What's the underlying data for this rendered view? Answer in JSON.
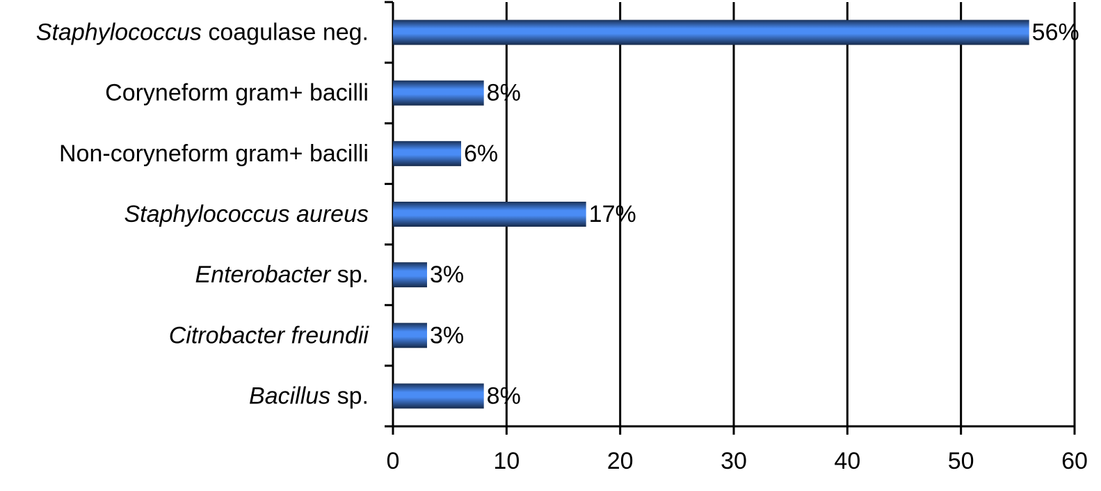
{
  "chart_data": {
    "type": "bar",
    "orientation": "horizontal",
    "categories": [
      [
        {
          "text": "Staphylococcus",
          "italic": true
        },
        {
          "text": " coagulase neg.",
          "italic": false
        }
      ],
      [
        {
          "text": "Coryneform gram+ bacilli",
          "italic": false
        }
      ],
      [
        {
          "text": "Non-coryneform gram+ bacilli",
          "italic": false
        }
      ],
      [
        {
          "text": "Staphylococcus aureus",
          "italic": true
        }
      ],
      [
        {
          "text": "Enterobacter",
          "italic": true
        },
        {
          "text": " sp.",
          "italic": false
        }
      ],
      [
        {
          "text": "Citrobacter freundii",
          "italic": true
        }
      ],
      [
        {
          "text": "Bacillus",
          "italic": true
        },
        {
          "text": " sp.",
          "italic": false
        }
      ]
    ],
    "values": [
      56,
      8,
      6,
      17,
      3,
      3,
      8
    ],
    "value_labels": [
      "56%",
      "8%",
      "6%",
      "17%",
      "3%",
      "3%",
      "8%"
    ],
    "color": "#4a8cf5",
    "xlim": [
      0,
      60
    ],
    "xticks": [
      0,
      10,
      20,
      30,
      40,
      50,
      60
    ],
    "grid": true
  }
}
